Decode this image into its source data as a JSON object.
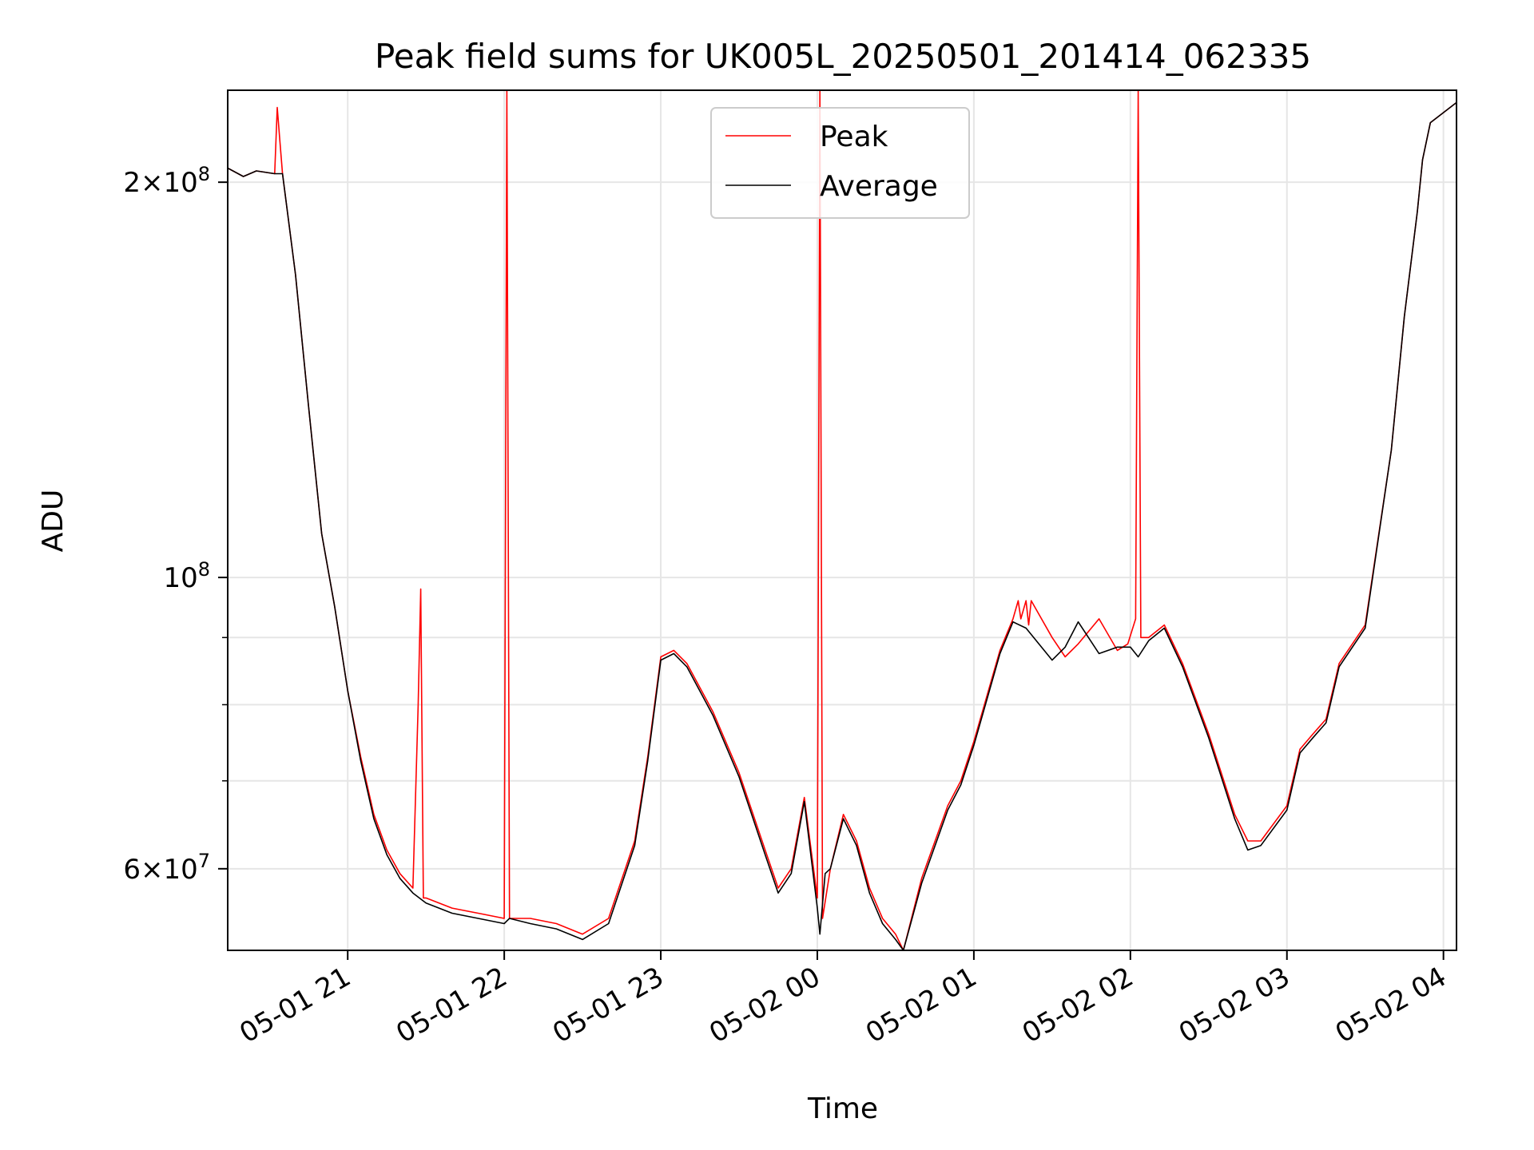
{
  "chart_data": {
    "type": "line",
    "title": "Peak field sums for UK005L_20250501_201414_062335",
    "xlabel": "Time",
    "ylabel": "ADU",
    "y_scale": "log",
    "ylim": [
      52000000,
      235000000
    ],
    "xlim": [
      "2025-05-01 20:14",
      "2025-05-02 04:05"
    ],
    "grid": true,
    "legend_position": "top-center",
    "x_ticks": [
      {
        "value": "2025-05-01 21:00",
        "label": "05-01 21"
      },
      {
        "value": "2025-05-01 22:00",
        "label": "05-01 22"
      },
      {
        "value": "2025-05-01 23:00",
        "label": "05-01 23"
      },
      {
        "value": "2025-05-02 00:00",
        "label": "05-02 00"
      },
      {
        "value": "2025-05-02 01:00",
        "label": "05-02 01"
      },
      {
        "value": "2025-05-02 02:00",
        "label": "05-02 02"
      },
      {
        "value": "2025-05-02 03:00",
        "label": "05-02 03"
      },
      {
        "value": "2025-05-02 04:00",
        "label": "05-02 04"
      }
    ],
    "y_ticks": [
      {
        "value": 60000000,
        "base": "6",
        "exp": "7"
      },
      {
        "value": 100000000,
        "base": "",
        "exp": "8"
      },
      {
        "value": 200000000,
        "base": "2",
        "exp": "8"
      }
    ],
    "y_minor_ticks": [
      70000000,
      80000000,
      90000000
    ],
    "series": [
      {
        "name": "Peak",
        "color": "#ff0000",
        "x": [
          "2025-05-01 20:14",
          "2025-05-01 20:20",
          "2025-05-01 20:25",
          "2025-05-01 20:32",
          "2025-05-01 20:33",
          "2025-05-01 20:34",
          "2025-05-01 20:35",
          "2025-05-01 20:40",
          "2025-05-01 20:45",
          "2025-05-01 20:50",
          "2025-05-01 20:55",
          "2025-05-01 21:00",
          "2025-05-01 21:05",
          "2025-05-01 21:10",
          "2025-05-01 21:15",
          "2025-05-01 21:20",
          "2025-05-01 21:25",
          "2025-05-01 21:27",
          "2025-05-01 21:28",
          "2025-05-01 21:29",
          "2025-05-01 21:30",
          "2025-05-01 21:40",
          "2025-05-01 21:50",
          "2025-05-01 22:00",
          "2025-05-01 22:01",
          "2025-05-01 22:02",
          "2025-05-01 22:03",
          "2025-05-01 22:10",
          "2025-05-01 22:20",
          "2025-05-01 22:30",
          "2025-05-01 22:40",
          "2025-05-01 22:50",
          "2025-05-01 22:55",
          "2025-05-01 23:00",
          "2025-05-01 23:05",
          "2025-05-01 23:10",
          "2025-05-01 23:20",
          "2025-05-01 23:30",
          "2025-05-01 23:40",
          "2025-05-01 23:45",
          "2025-05-01 23:50",
          "2025-05-01 23:55",
          "2025-05-02 00:00",
          "2025-05-02 00:01",
          "2025-05-02 00:02",
          "2025-05-02 00:05",
          "2025-05-02 00:10",
          "2025-05-02 00:15",
          "2025-05-02 00:20",
          "2025-05-02 00:25",
          "2025-05-02 00:30",
          "2025-05-02 00:33",
          "2025-05-02 00:40",
          "2025-05-02 00:50",
          "2025-05-02 00:55",
          "2025-05-02 01:00",
          "2025-05-02 01:10",
          "2025-05-02 01:15",
          "2025-05-02 01:17",
          "2025-05-02 01:18",
          "2025-05-02 01:20",
          "2025-05-02 01:21",
          "2025-05-02 01:22",
          "2025-05-02 01:30",
          "2025-05-02 01:35",
          "2025-05-02 01:40",
          "2025-05-02 01:48",
          "2025-05-02 01:55",
          "2025-05-02 01:59",
          "2025-05-02 02:02",
          "2025-05-02 02:03",
          "2025-05-02 02:04",
          "2025-05-02 02:07",
          "2025-05-02 02:13",
          "2025-05-02 02:20",
          "2025-05-02 02:30",
          "2025-05-02 02:40",
          "2025-05-02 02:45",
          "2025-05-02 02:50",
          "2025-05-02 03:00",
          "2025-05-02 03:05",
          "2025-05-02 03:10",
          "2025-05-02 03:15",
          "2025-05-02 03:20",
          "2025-05-02 03:30",
          "2025-05-02 03:40",
          "2025-05-02 03:45",
          "2025-05-02 03:50",
          "2025-05-02 03:52",
          "2025-05-02 03:55",
          "2025-05-02 04:05"
        ],
        "y": [
          205000000,
          202000000,
          204000000,
          203000000,
          228000000,
          215000000,
          203000000,
          170000000,
          135000000,
          108000000,
          95000000,
          82000000,
          73000000,
          66000000,
          62000000,
          59500000,
          58000000,
          80000000,
          98000000,
          57000000,
          57000000,
          56000000,
          55500000,
          55000000,
          235000000,
          55000000,
          55000000,
          55000000,
          54500000,
          53500000,
          55000000,
          63000000,
          73000000,
          87000000,
          88000000,
          86000000,
          79000000,
          71000000,
          62000000,
          58000000,
          60000000,
          68000000,
          57000000,
          235000000,
          55000000,
          60000000,
          66000000,
          63000000,
          58000000,
          55000000,
          53500000,
          52000000,
          59000000,
          67000000,
          70000000,
          75000000,
          88000000,
          93000000,
          96000000,
          93000000,
          96000000,
          92000000,
          96000000,
          90000000,
          87000000,
          89000000,
          93000000,
          88000000,
          89000000,
          93000000,
          235000000,
          90000000,
          90000000,
          92000000,
          86000000,
          76000000,
          66000000,
          63000000,
          63000000,
          67000000,
          74000000,
          76000000,
          78000000,
          86000000,
          92000000,
          125000000,
          158000000,
          190000000,
          208000000,
          222000000,
          230000000
        ]
      },
      {
        "name": "Average",
        "color": "#000000",
        "x": [
          "2025-05-01 20:14",
          "2025-05-01 20:20",
          "2025-05-01 20:25",
          "2025-05-01 20:32",
          "2025-05-01 20:35",
          "2025-05-01 20:40",
          "2025-05-01 20:45",
          "2025-05-01 20:50",
          "2025-05-01 20:55",
          "2025-05-01 21:00",
          "2025-05-01 21:05",
          "2025-05-01 21:10",
          "2025-05-01 21:15",
          "2025-05-01 21:20",
          "2025-05-01 21:25",
          "2025-05-01 21:30",
          "2025-05-01 21:40",
          "2025-05-01 21:50",
          "2025-05-01 22:00",
          "2025-05-01 22:02",
          "2025-05-01 22:10",
          "2025-05-01 22:20",
          "2025-05-01 22:30",
          "2025-05-01 22:40",
          "2025-05-01 22:50",
          "2025-05-01 22:55",
          "2025-05-01 23:00",
          "2025-05-01 23:05",
          "2025-05-01 23:10",
          "2025-05-01 23:20",
          "2025-05-01 23:30",
          "2025-05-01 23:40",
          "2025-05-01 23:45",
          "2025-05-01 23:50",
          "2025-05-01 23:55",
          "2025-05-02 00:00",
          "2025-05-02 00:01",
          "2025-05-02 00:03",
          "2025-05-02 00:05",
          "2025-05-02 00:10",
          "2025-05-02 00:15",
          "2025-05-02 00:20",
          "2025-05-02 00:25",
          "2025-05-02 00:30",
          "2025-05-02 00:33",
          "2025-05-02 00:40",
          "2025-05-02 00:50",
          "2025-05-02 00:55",
          "2025-05-02 01:00",
          "2025-05-02 01:10",
          "2025-05-02 01:15",
          "2025-05-02 01:20",
          "2025-05-02 01:30",
          "2025-05-02 01:35",
          "2025-05-02 01:40",
          "2025-05-02 01:48",
          "2025-05-02 01:55",
          "2025-05-02 02:00",
          "2025-05-02 02:03",
          "2025-05-02 02:07",
          "2025-05-02 02:13",
          "2025-05-02 02:20",
          "2025-05-02 02:30",
          "2025-05-02 02:40",
          "2025-05-02 02:45",
          "2025-05-02 02:50",
          "2025-05-02 03:00",
          "2025-05-02 03:05",
          "2025-05-02 03:10",
          "2025-05-02 03:15",
          "2025-05-02 03:20",
          "2025-05-02 03:30",
          "2025-05-02 03:40",
          "2025-05-02 03:45",
          "2025-05-02 03:50",
          "2025-05-02 03:52",
          "2025-05-02 03:55",
          "2025-05-02 04:05"
        ],
        "y": [
          205000000,
          202000000,
          204000000,
          203000000,
          203000000,
          170000000,
          135000000,
          108000000,
          95000000,
          82000000,
          72500000,
          65500000,
          61500000,
          59000000,
          57500000,
          56500000,
          55500000,
          55000000,
          54500000,
          55000000,
          54500000,
          54000000,
          53000000,
          54500000,
          62500000,
          72500000,
          86500000,
          87500000,
          85500000,
          78500000,
          70500000,
          61500000,
          57500000,
          59500000,
          67500000,
          56000000,
          53500000,
          59500000,
          60000000,
          65500000,
          62500000,
          57500000,
          54500000,
          53000000,
          52000000,
          58500000,
          66500000,
          69500000,
          74500000,
          87500000,
          92500000,
          91500000,
          86500000,
          88500000,
          92500000,
          87500000,
          88500000,
          88500000,
          87000000,
          89500000,
          91500000,
          85500000,
          75500000,
          65500000,
          62000000,
          62500000,
          66500000,
          73500000,
          75500000,
          77500000,
          85500000,
          91500000,
          125000000,
          158000000,
          190000000,
          208000000,
          222000000,
          230000000
        ]
      }
    ]
  }
}
